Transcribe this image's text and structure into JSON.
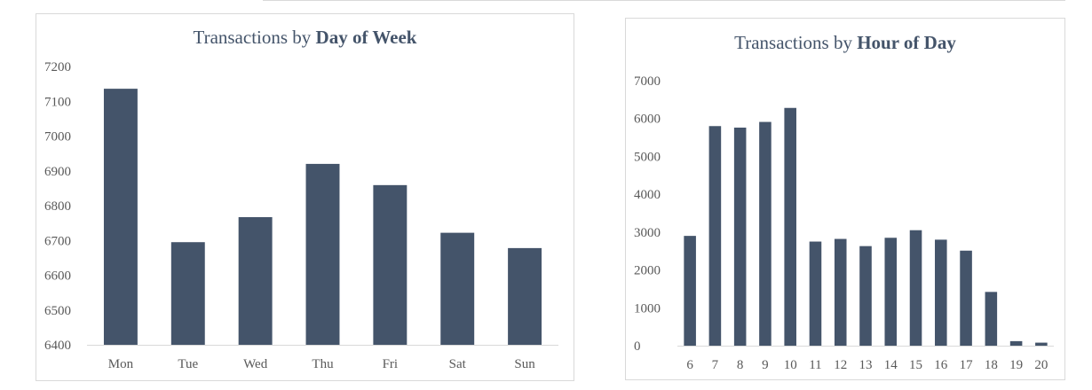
{
  "colors": {
    "bar": "#44546a",
    "axis": "#d9d9d9",
    "text": "#595959",
    "title": "#44546a"
  },
  "chart_data": [
    {
      "type": "bar",
      "title_prefix": "Transactions by ",
      "title_bold": "Day of Week",
      "xlabel": "",
      "ylabel": "",
      "categories": [
        "Mon",
        "Tue",
        "Wed",
        "Thu",
        "Fri",
        "Sat",
        "Sun"
      ],
      "values": [
        7136,
        6695,
        6767,
        6920,
        6859,
        6722,
        6678
      ],
      "ylim": [
        6400,
        7200
      ],
      "yticks": [
        6400,
        6500,
        6600,
        6700,
        6800,
        6900,
        7000,
        7100,
        7200
      ],
      "grid": false,
      "legend": "none"
    },
    {
      "type": "bar",
      "title_prefix": "Transactions by ",
      "title_bold": "Hour of Day",
      "xlabel": "",
      "ylabel": "",
      "categories": [
        "6",
        "7",
        "8",
        "9",
        "10",
        "11",
        "12",
        "13",
        "14",
        "15",
        "16",
        "17",
        "18",
        "19",
        "20"
      ],
      "values": [
        2900,
        5800,
        5760,
        5910,
        6280,
        2750,
        2820,
        2630,
        2850,
        3050,
        2800,
        2510,
        1420,
        120,
        80
      ],
      "ylim": [
        0,
        7000
      ],
      "yticks": [
        0,
        1000,
        2000,
        3000,
        4000,
        5000,
        6000,
        7000
      ],
      "grid": false,
      "legend": "none"
    }
  ]
}
